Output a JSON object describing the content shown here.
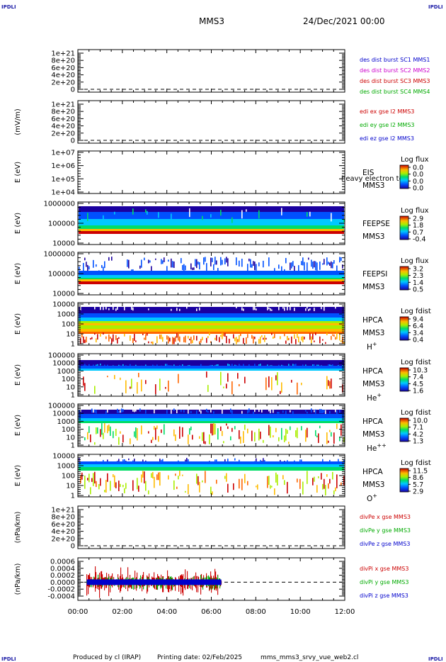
{
  "header": {
    "corner_label": "IPDLI",
    "spacecraft": "MMS3",
    "date": "24/Dec/2021 00:00"
  },
  "footer": {
    "produced_by": "Produced by cl (IRAP)",
    "printing_date": "Printing date: 02/Feb/2025",
    "file": "mms_mms3_srvy_vue_web2.cl"
  },
  "time_axis": {
    "ticks": [
      "00:00",
      "02:00",
      "04:00",
      "06:00",
      "08:00",
      "10:00",
      "12:00"
    ],
    "hours": [
      0,
      2,
      4,
      6,
      8,
      10,
      12
    ]
  },
  "chart_data": [
    {
      "id": "panel1",
      "type": "line",
      "ylabel": "",
      "yticks": [
        "1e+21",
        "8e+20",
        "6e+20",
        "4e+20",
        "2e+20",
        "0"
      ],
      "ylim": [
        0,
        1.1e+21
      ],
      "series": [
        {
          "name": "des dist burst SC1 MMS1",
          "color": "#0000cc",
          "values": []
        },
        {
          "name": "des dist burst SC2 MMS2",
          "color": "#cc00cc",
          "values": []
        },
        {
          "name": "des dist burst SC3 MMS3",
          "color": "#cc0000",
          "values": []
        },
        {
          "name": "des dist burst SC4 MMS4",
          "color": "#00aa00",
          "values": []
        }
      ]
    },
    {
      "id": "panel2",
      "type": "line",
      "ylabel": "(mV/m)",
      "yticks": [
        "1e+21",
        "8e+20",
        "6e+20",
        "4e+20",
        "2e+20",
        "0"
      ],
      "ylim": [
        0,
        1.1e+21
      ],
      "series": [
        {
          "name": "edi ex gse l2 MMS3",
          "color": "#cc0000",
          "values": []
        },
        {
          "name": "edi ey gse l2 MMS3",
          "color": "#00aa00",
          "values": []
        },
        {
          "name": "edi ez gse l2 MMS3",
          "color": "#0000cc",
          "values": []
        }
      ]
    },
    {
      "id": "panel3",
      "type": "heatmap",
      "ylabel": "E (eV)",
      "yticks": [
        "1e+07",
        "1e+06",
        "1e+05",
        "1e+04"
      ],
      "instrument": [
        "EIS",
        "MMS3"
      ],
      "overlay_text": "heavy electron to",
      "colorbar": {
        "title": "Log flux",
        "ticks": [
          "0.0",
          "0.0",
          "0.0",
          "0.0"
        ]
      }
    },
    {
      "id": "panel4",
      "type": "heatmap",
      "ylabel": "E (eV)",
      "yticks": [
        "1000000",
        "100000",
        "10000"
      ],
      "instrument": [
        "FEEPSE",
        "MMS3"
      ],
      "colorbar": {
        "title": "Log flux",
        "ticks": [
          "2.9",
          "1.8",
          "0.7",
          "-0.4"
        ]
      }
    },
    {
      "id": "panel5",
      "type": "heatmap",
      "ylabel": "E (eV)",
      "yticks": [
        "1000000",
        "100000",
        "10000"
      ],
      "instrument": [
        "FEEPSI",
        "MMS3"
      ],
      "colorbar": {
        "title": "Log flux",
        "ticks": [
          "3.2",
          "2.3",
          "1.4",
          "0.5"
        ]
      }
    },
    {
      "id": "panel6",
      "type": "heatmap",
      "ylabel": "E (eV)",
      "yticks": [
        "10000",
        "1000",
        "100",
        "10",
        "1"
      ],
      "instrument": [
        "HPCA",
        "MMS3"
      ],
      "species": {
        "base": "H",
        "sup": "+"
      },
      "colorbar": {
        "title": "Log fdist",
        "ticks": [
          "9.4",
          "6.4",
          "3.4",
          "0.4"
        ]
      }
    },
    {
      "id": "panel7",
      "type": "heatmap",
      "ylabel": "E (eV)",
      "yticks": [
        "100000",
        "10000",
        "1000",
        "100",
        "10",
        "1"
      ],
      "instrument": [
        "HPCA",
        "MMS3"
      ],
      "species": {
        "base": "He",
        "sup": "+"
      },
      "colorbar": {
        "title": "Log fdist",
        "ticks": [
          "10.3",
          "7.4",
          "4.5",
          "1.6"
        ]
      }
    },
    {
      "id": "panel8",
      "type": "heatmap",
      "ylabel": "E (eV)",
      "yticks": [
        "100000",
        "10000",
        "1000",
        "100",
        "10",
        "1"
      ],
      "instrument": [
        "HPCA",
        "MMS3"
      ],
      "species": {
        "base": "He",
        "sup": "++"
      },
      "colorbar": {
        "title": "Log fdist",
        "ticks": [
          "10.0",
          "7.1",
          "4.2",
          "1.3"
        ]
      }
    },
    {
      "id": "panel9",
      "type": "heatmap",
      "ylabel": "E (eV)",
      "yticks": [
        "10000",
        "1000",
        "100",
        "10",
        "1"
      ],
      "instrument": [
        "HPCA",
        "MMS3"
      ],
      "species": {
        "base": "O",
        "sup": "+"
      },
      "colorbar": {
        "title": "Log fdist",
        "ticks": [
          "11.5",
          "8.6",
          "5.7",
          "2.9"
        ]
      }
    },
    {
      "id": "panel10",
      "type": "line",
      "ylabel": "(nPa/km)",
      "yticks": [
        "1e+21",
        "8e+20",
        "6e+20",
        "4e+20",
        "2e+20",
        "0"
      ],
      "ylim": [
        0,
        1.1e+21
      ],
      "series": [
        {
          "name": "divPe x gse MMS3",
          "color": "#cc0000",
          "values": []
        },
        {
          "name": "divPe y gse MMS3",
          "color": "#00aa00",
          "values": []
        },
        {
          "name": "divPe z gse MMS3",
          "color": "#0000cc",
          "values": []
        }
      ]
    },
    {
      "id": "panel11",
      "type": "line",
      "ylabel": "(nPa/km)",
      "yticks": [
        "0.0006",
        "0.0004",
        "0.0002",
        "0.0000",
        "-0.0002",
        "-0.0004"
      ],
      "ylim": [
        -0.0005,
        0.0006
      ],
      "data_span_hours": [
        0.4,
        6.45
      ],
      "series": [
        {
          "name": "divPi x gse MMS3",
          "color": "#cc0000",
          "amplitude": 0.0004
        },
        {
          "name": "divPi y gse MMS3",
          "color": "#00aa00",
          "amplitude": 0.0002
        },
        {
          "name": "divPi z gse MMS3",
          "color": "#0000cc",
          "amplitude": 8e-05
        }
      ]
    }
  ]
}
